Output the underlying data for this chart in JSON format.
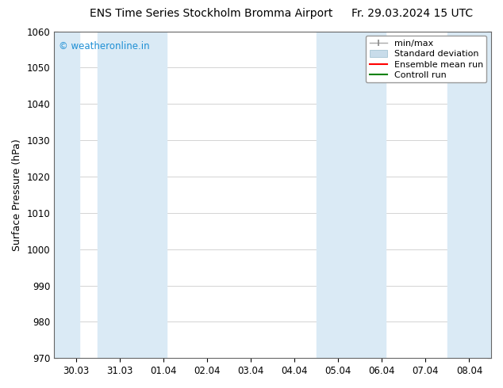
{
  "title_left": "ENS Time Series Stockholm Bromma Airport",
  "title_right": "Fr. 29.03.2024 15 UTC",
  "ylabel": "Surface Pressure (hPa)",
  "ylim": [
    970,
    1060
  ],
  "yticks": [
    970,
    980,
    990,
    1000,
    1010,
    1020,
    1030,
    1040,
    1050,
    1060
  ],
  "xtick_labels": [
    "30.03",
    "31.03",
    "01.04",
    "02.04",
    "03.04",
    "04.04",
    "05.04",
    "06.04",
    "07.04",
    "08.04"
  ],
  "num_xticks": 10,
  "band_color": "#DAEAF5",
  "watermark": "© weatheronline.in",
  "watermark_color": "#1E8FD5",
  "legend_items": [
    {
      "label": "min/max"
    },
    {
      "label": "Standard deviation"
    },
    {
      "label": "Ensemble mean run",
      "color": "red"
    },
    {
      "label": "Controll run",
      "color": "green"
    }
  ],
  "bg_color": "#ffffff",
  "grid_color": "#cccccc",
  "title_fontsize": 10,
  "tick_fontsize": 8.5,
  "ylabel_fontsize": 9,
  "legend_fontsize": 8
}
